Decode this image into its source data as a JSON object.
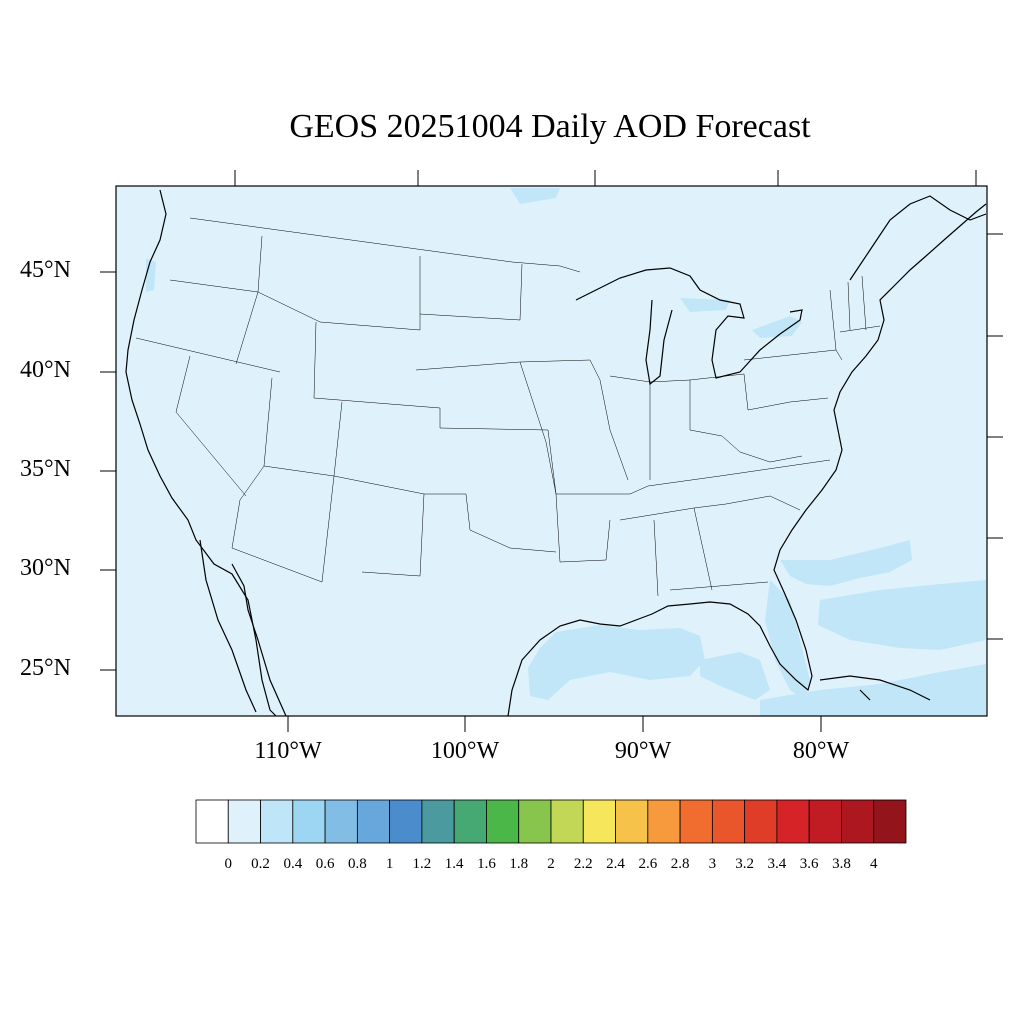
{
  "title": "GEOS 20251004 Daily AOD Forecast",
  "map": {
    "region": "CONUS",
    "background_color": "#dff2fc",
    "elevated_color": "#c0e6f8",
    "lat_labels": [
      {
        "lat": 45,
        "label": "45°N"
      },
      {
        "lat": 40,
        "label": "40°N"
      },
      {
        "lat": 35,
        "label": "35°N"
      },
      {
        "lat": 30,
        "label": "30°N"
      },
      {
        "lat": 25,
        "label": "25°N"
      }
    ],
    "lon_labels": [
      {
        "lon": -110,
        "label": "110°W"
      },
      {
        "lon": -100,
        "label": "100°W"
      },
      {
        "lon": -90,
        "label": "90°W"
      },
      {
        "lon": -80,
        "label": "80°W"
      }
    ]
  },
  "colorbar": {
    "colors": [
      "#ffffff",
      "#dff2fc",
      "#bfe5f8",
      "#9dd6f3",
      "#81bde5",
      "#68a7dc",
      "#4b8ccc",
      "#4a9aa0",
      "#46a873",
      "#4cb749",
      "#88c54d",
      "#c3d756",
      "#f6e65b",
      "#f7c24a",
      "#f69a3d",
      "#f16c2f",
      "#e9562c",
      "#e03d29",
      "#d62328",
      "#c11b23",
      "#ad1820",
      "#93151b"
    ],
    "labels": [
      "0",
      "0.2",
      "0.4",
      "0.6",
      "0.8",
      "1",
      "1.2",
      "1.4",
      "1.6",
      "1.8",
      "2",
      "2.2",
      "2.4",
      "2.6",
      "2.8",
      "3",
      "3.2",
      "3.4",
      "3.6",
      "3.8",
      "4"
    ]
  }
}
